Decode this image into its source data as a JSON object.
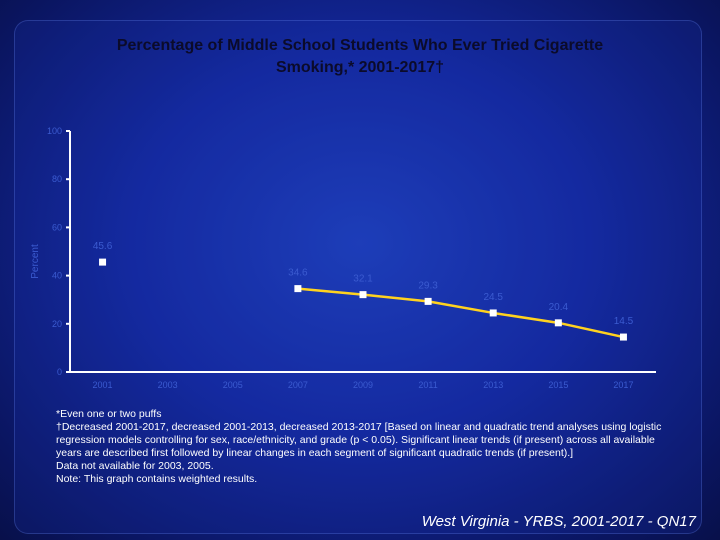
{
  "page": {
    "title_line1": "Percentage of Middle School Students Who Ever Tried Cigarette",
    "title_line2": "Smoking,* 2001-2017†",
    "footnotes": [
      "*Even one or two puffs",
      "†Decreased 2001-2017, decreased 2001-2013, decreased 2013-2017 [Based on linear and quadratic trend analyses using logistic",
      "regression models controlling for sex, race/ethnicity, and grade (p < 0.05). Significant linear trends (if present) across all available",
      "years are described first followed by linear changes in each segment of significant quadratic trends (if present).]",
      "Data not available for 2003, 2005.",
      "Note: This graph contains weighted results."
    ],
    "source": "West Virginia - YRBS, 2001-2017 - QN17"
  },
  "chart_data": {
    "type": "line",
    "ylabel": "Percent",
    "ylim": [
      0,
      100
    ],
    "yticks": [
      0,
      20,
      40,
      60,
      80,
      100
    ],
    "categories": [
      "2001",
      "2003",
      "2005",
      "2007",
      "2009",
      "2011",
      "2013",
      "2015",
      "2017"
    ],
    "values": [
      45.6,
      null,
      null,
      34.6,
      32.1,
      29.3,
      24.5,
      20.4,
      14.5
    ],
    "value_labels": [
      "45.6",
      "",
      "",
      "34.6",
      "32.1",
      "29.3",
      "24.5",
      "20.4",
      "14.5"
    ],
    "colors": {
      "line": "#ffd21f",
      "marker": "#ffffff",
      "axis": "#ffffff",
      "faint_text": "#3b5bd0"
    }
  }
}
